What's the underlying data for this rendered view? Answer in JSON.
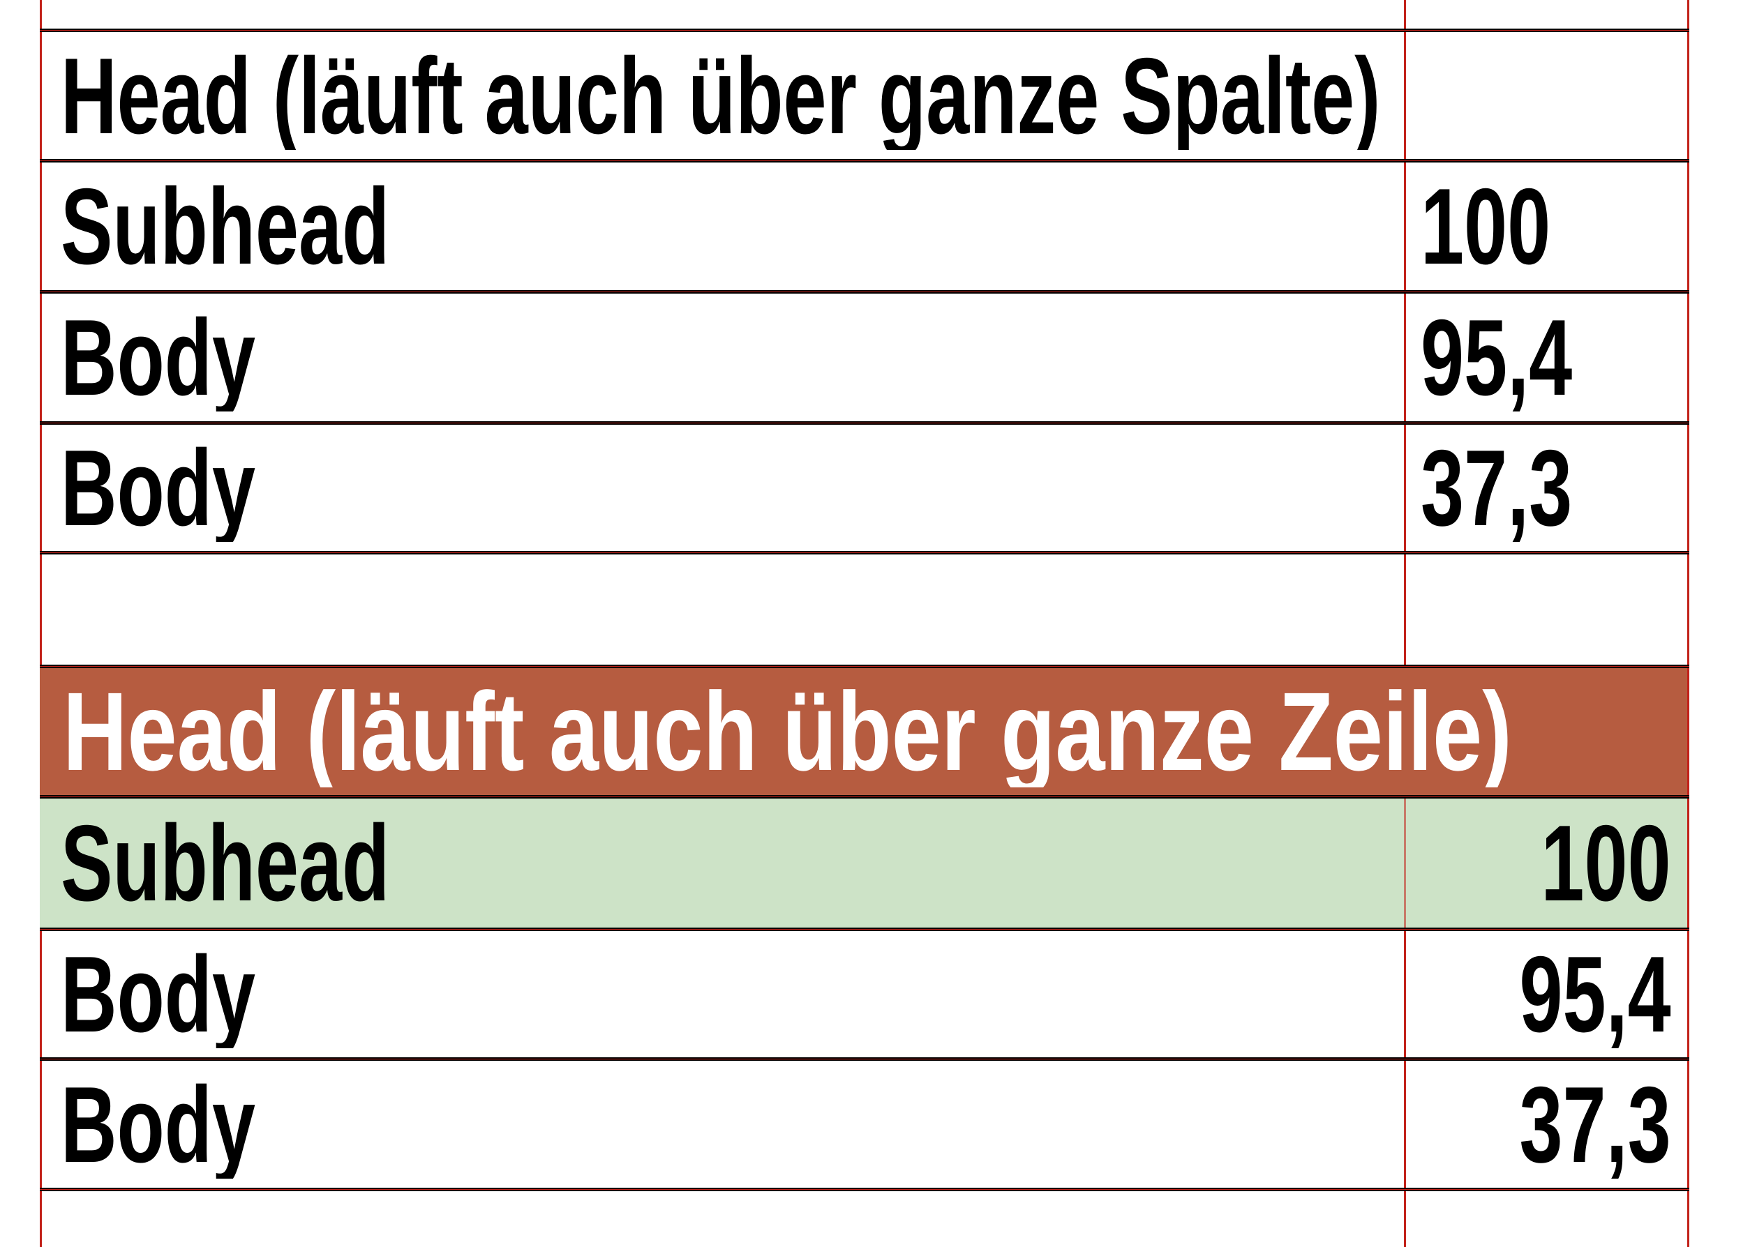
{
  "colors": {
    "grid_red": "#c2221a",
    "band_red": "#b65c40",
    "band_green": "#cde3c7",
    "text_black": "#000000",
    "text_white": "#ffffff"
  },
  "table1": {
    "head": "Head (läuft auch über ganze Spalte)",
    "head_right_cell": "",
    "rows": [
      {
        "label": "Subhead",
        "value": "100"
      },
      {
        "label": "Body",
        "value": "95,4"
      },
      {
        "label": "Body",
        "value": "37,3"
      }
    ]
  },
  "table2": {
    "head": "Head (läuft auch über ganze Zeile)",
    "rows": [
      {
        "label": "Subhead",
        "value": "100"
      },
      {
        "label": "Body",
        "value": "95,4"
      },
      {
        "label": "Body",
        "value": "37,3"
      }
    ]
  }
}
